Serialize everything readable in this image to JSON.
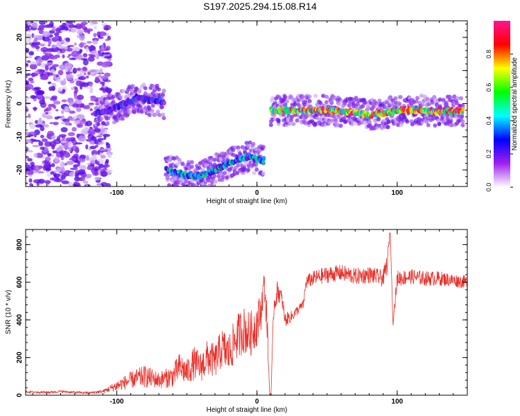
{
  "figure": {
    "title": "S197.2025.294.15.08.R14"
  },
  "chart_data": [
    {
      "type": "heatmap",
      "xlabel": "Height of straight line (km)",
      "ylabel": "Frequency (Hz)",
      "xlim": [
        -165,
        150
      ],
      "ylim": [
        -25,
        25
      ],
      "xticks": [
        -100,
        0,
        100
      ],
      "yticks": [
        -20,
        -10,
        0,
        10,
        20
      ],
      "grid": false,
      "colorbar": {
        "label": "Normalized spectral amplitude",
        "range": [
          0,
          1
        ],
        "ticks": [
          "0.0",
          "0.2",
          "0.4",
          "0.6",
          "0.8"
        ],
        "colors": [
          "#ffffff",
          "#a020f0",
          "#0000ff",
          "#00ffff",
          "#00ff00",
          "#ffff00",
          "#ff0000",
          "#ff1493"
        ]
      },
      "ridges": [
        {
          "name": "scatter-noise",
          "x": [
            -165,
            -105
          ],
          "y_range": [
            -25,
            25
          ],
          "amplitude": 0.15
        },
        {
          "name": "segment-1",
          "x": [
            -115,
            -105,
            -95,
            -85,
            -78,
            -70,
            -66
          ],
          "y": [
            -3,
            -2,
            0,
            2,
            1,
            1,
            0
          ],
          "amplitude": 0.35
        },
        {
          "name": "segment-2",
          "x": [
            -65,
            -55,
            -45,
            -35,
            -25,
            -15,
            -5,
            0,
            5
          ],
          "y": [
            -20,
            -21,
            -22,
            -21,
            -19,
            -17,
            -16,
            -17,
            -17
          ],
          "amplitude": 0.5
        },
        {
          "name": "segment-3",
          "x": [
            10,
            30,
            50,
            70,
            80,
            85,
            90,
            95,
            100,
            110,
            120,
            130,
            147
          ],
          "y": [
            -2,
            -2,
            -2,
            -2.5,
            -3.5,
            -3,
            -3,
            -2.5,
            -2,
            -2,
            -2,
            -2.5,
            -2
          ],
          "amplitude": 0.85
        }
      ]
    },
    {
      "type": "line",
      "xlabel": "Height of straight line (km)",
      "ylabel": "SNR (10 * v/v)",
      "xlim": [
        -165,
        150
      ],
      "ylim": [
        0,
        880
      ],
      "xticks": [
        -100,
        0,
        100
      ],
      "yticks": [
        0,
        200,
        400,
        600,
        800
      ],
      "grid": false,
      "series": [
        {
          "color": "#e8302a",
          "x": [
            -165,
            -150,
            -140,
            -130,
            -120,
            -110,
            -100,
            -90,
            -80,
            -70,
            -60,
            -55,
            -50,
            -45,
            -40,
            -35,
            -30,
            -25,
            -20,
            -15,
            -10,
            -5,
            0,
            3,
            5,
            7,
            9,
            10,
            12,
            15,
            18,
            20,
            25,
            30,
            33,
            35,
            40,
            50,
            60,
            70,
            80,
            90,
            93,
            95,
            97,
            100,
            110,
            120,
            130,
            140,
            150
          ],
          "y": [
            18,
            15,
            20,
            15,
            12,
            20,
            50,
            80,
            100,
            80,
            100,
            150,
            120,
            170,
            150,
            200,
            180,
            250,
            220,
            300,
            350,
            320,
            380,
            450,
            600,
            420,
            5,
            5,
            480,
            560,
            500,
            400,
            420,
            460,
            480,
            600,
            620,
            640,
            650,
            630,
            640,
            620,
            700,
            880,
            380,
            620,
            630,
            620,
            620,
            610,
            600
          ],
          "spread": [
            6,
            6,
            6,
            6,
            6,
            8,
            30,
            45,
            60,
            45,
            60,
            80,
            70,
            90,
            80,
            100,
            90,
            110,
            110,
            120,
            130,
            120,
            120,
            100,
            60,
            100,
            5,
            5,
            60,
            60,
            50,
            40,
            30,
            25,
            25,
            40,
            40,
            45,
            45,
            45,
            45,
            45,
            60,
            10,
            10,
            45,
            40,
            40,
            40,
            35,
            35
          ]
        }
      ]
    }
  ]
}
